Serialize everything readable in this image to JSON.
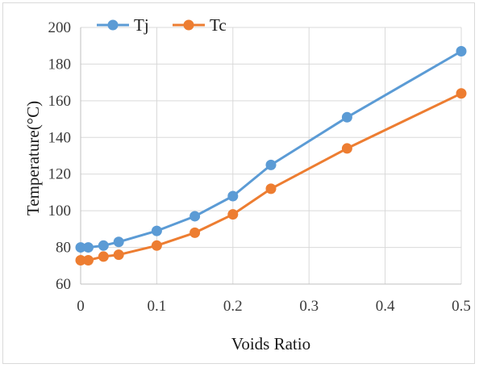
{
  "chart_data": {
    "type": "line",
    "title": "",
    "xlabel": "Voids Ratio",
    "ylabel": "Temperature(°C)",
    "xlim": [
      0,
      0.5
    ],
    "ylim": [
      60,
      200
    ],
    "xticks": [
      0,
      0.1,
      0.2,
      0.3,
      0.4,
      0.5
    ],
    "xtick_labels": [
      "0",
      "0.1",
      "0.2",
      "0.3",
      "0.4",
      "0.5"
    ],
    "yticks": [
      60,
      80,
      100,
      120,
      140,
      160,
      180,
      200
    ],
    "ytick_labels": [
      "60",
      "80",
      "100",
      "120",
      "140",
      "160",
      "180",
      "200"
    ],
    "grid": true,
    "legend": "top-left",
    "x": [
      0,
      0.01,
      0.03,
      0.05,
      0.1,
      0.15,
      0.2,
      0.25,
      0.35,
      0.5
    ],
    "series": [
      {
        "name": "Tj",
        "color": "#5b9bd5",
        "values": [
          80,
          80,
          81,
          83,
          89,
          97,
          108,
          125,
          151,
          187
        ]
      },
      {
        "name": "Tc",
        "color": "#ed7d31",
        "values": [
          73,
          73,
          75,
          76,
          81,
          88,
          98,
          112,
          134,
          164
        ]
      }
    ]
  }
}
